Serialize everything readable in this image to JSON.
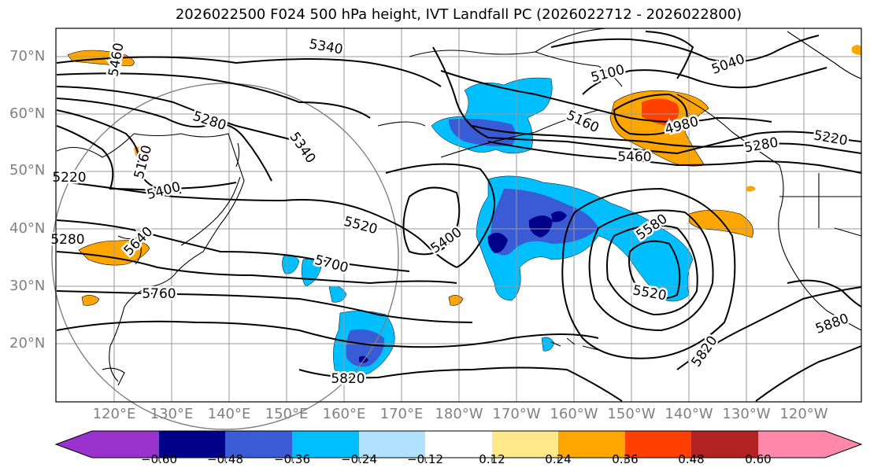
{
  "title": "2026022500 F024 500 hPa height, IVT Landfall PC (2026022712 - 2026022800)",
  "map": {
    "lat_ticks": [
      "70°N",
      "60°N",
      "50°N",
      "40°N",
      "30°N",
      "20°N"
    ],
    "lon_ticks": [
      "120°E",
      "130°E",
      "140°E",
      "150°E",
      "160°E",
      "170°E",
      "180°W",
      "170°W",
      "160°W",
      "150°W",
      "140°W",
      "130°W",
      "120°W"
    ],
    "contour_labels": [
      "5460",
      "5340",
      "5100",
      "5040",
      "5160",
      "4980",
      "5280",
      "5220",
      "5460",
      "5280",
      "5340",
      "5160",
      "5220",
      "5400",
      "5520",
      "5400",
      "5580",
      "5640",
      "5700",
      "5760",
      "5520",
      "5880",
      "5820",
      "5820",
      "5280"
    ],
    "shading_colors": {
      "negative_strong": "#00008b",
      "negative": "#3a5bd6",
      "negative_weak": "#00bfff",
      "positive_weak": "#ffa500",
      "positive": "#ff4000"
    }
  },
  "colorbar": {
    "ticks": [
      "−0.60",
      "−0.48",
      "−0.36",
      "−0.24",
      "−0.12",
      "0.12",
      "0.24",
      "0.36",
      "0.48",
      "0.60"
    ],
    "colors": [
      "#9932cc",
      "#00008b",
      "#3a5bd6",
      "#00bfff",
      "#b0e2ff",
      "#ffffff",
      "#ffe88a",
      "#ffa500",
      "#ff4000",
      "#b22222",
      "#ff88aa"
    ]
  }
}
